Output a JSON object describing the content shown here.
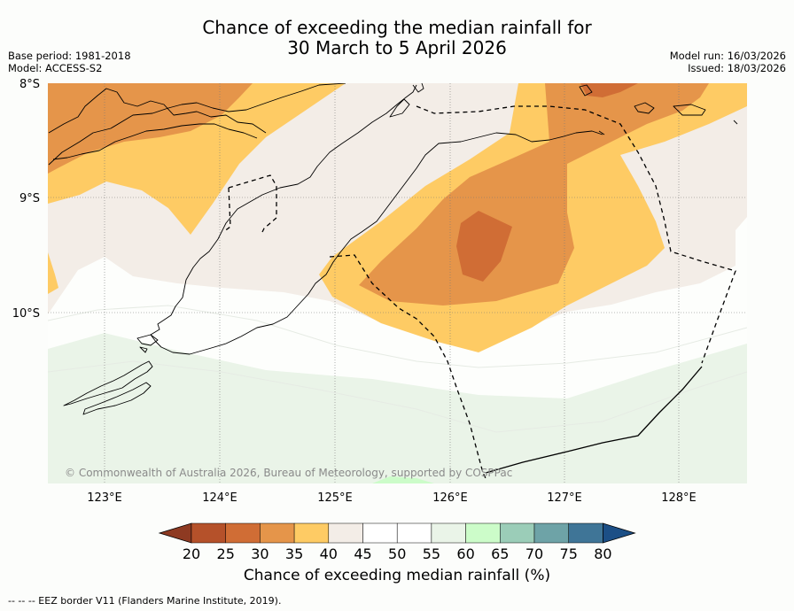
{
  "title": {
    "line1": "Chance of exceeding the median rainfall for",
    "line2": "30 March to 5 April 2026"
  },
  "meta": {
    "base_period": "Base period: 1981-2018",
    "model": "Model: ACCESS-S2",
    "model_run": "Model run: 16/03/2026",
    "issued": "Issued: 18/03/2026"
  },
  "map": {
    "lat_labels": [
      "8°S",
      "9°S",
      "10°S"
    ],
    "lon_labels": [
      "123°E",
      "124°E",
      "125°E",
      "126°E",
      "127°E",
      "128°E"
    ],
    "copyright": "© Commonwealth of Australia 2026, Bureau of Meteorology, supported by COSPPac"
  },
  "colorbar": {
    "title": "Chance of exceeding median rainfall (%)",
    "ticks": [
      "20",
      "25",
      "30",
      "35",
      "40",
      "45",
      "50",
      "55",
      "60",
      "65",
      "70",
      "75",
      "80"
    ],
    "colors": [
      "#8e3a22",
      "#b5512a",
      "#d06d35",
      "#e5954a",
      "#fecb64",
      "#f3ede7",
      "#ffffff",
      "#ffffff",
      "#eaf4e8",
      "#ccfcc9",
      "#9bcdb8",
      "#6ea3a7",
      "#3f7597",
      "#1c4f86"
    ]
  },
  "footer": "--  --  -- EEZ border V11 (Flanders Marine Institute, 2019)."
}
